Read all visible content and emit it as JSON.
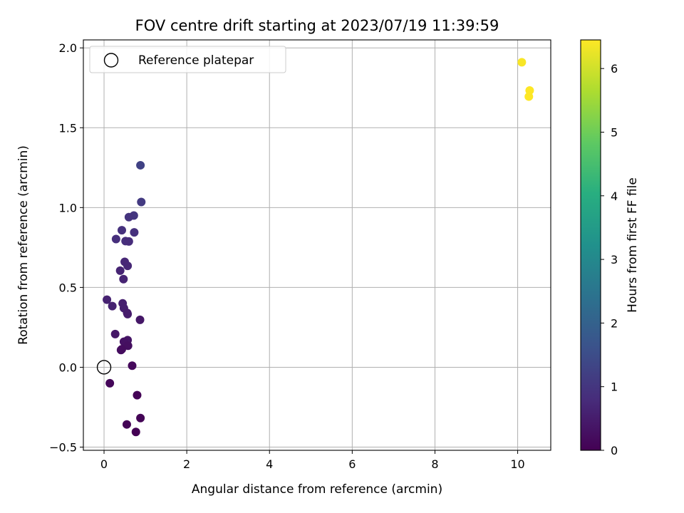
{
  "chart_data": {
    "type": "scatter",
    "title": "FOV centre drift starting at 2023/07/19 11:39:59",
    "xlabel": "Angular distance from reference (arcmin)",
    "ylabel": "Rotation from reference (arcmin)",
    "xlim": [
      -0.5,
      10.8
    ],
    "ylim": [
      -0.52,
      2.05
    ],
    "xticks": [
      0,
      2,
      4,
      6,
      8,
      10
    ],
    "xtick_labels": [
      "0",
      "2",
      "4",
      "6",
      "8",
      "10"
    ],
    "yticks": [
      -0.5,
      0.0,
      0.5,
      1.0,
      1.5,
      2.0
    ],
    "ytick_labels": [
      "−0.5",
      "0.0",
      "0.5",
      "1.0",
      "1.5",
      "2.0"
    ],
    "grid": true,
    "legend": {
      "position": "top-left",
      "entries": [
        {
          "label": "Reference platepar",
          "marker": "open-circle"
        }
      ]
    },
    "reference_point": {
      "x": 0.0,
      "y": 0.0
    },
    "colorbar": {
      "label": "Hours from first FF file",
      "range": [
        0,
        6.45
      ],
      "ticks": [
        0,
        1,
        2,
        3,
        4,
        5,
        6
      ],
      "tick_labels": [
        "0",
        "1",
        "2",
        "3",
        "4",
        "5",
        "6"
      ],
      "colormap": "viridis"
    },
    "points": [
      {
        "x": 0.88,
        "y": 1.265,
        "h": 1.25
      },
      {
        "x": 0.9,
        "y": 1.035,
        "h": 1.1
      },
      {
        "x": 0.72,
        "y": 0.95,
        "h": 1.0
      },
      {
        "x": 0.6,
        "y": 0.94,
        "h": 0.95
      },
      {
        "x": 0.73,
        "y": 0.845,
        "h": 0.9
      },
      {
        "x": 0.43,
        "y": 0.858,
        "h": 0.9
      },
      {
        "x": 0.29,
        "y": 0.803,
        "h": 0.85
      },
      {
        "x": 0.52,
        "y": 0.79,
        "h": 0.85
      },
      {
        "x": 0.6,
        "y": 0.788,
        "h": 0.8
      },
      {
        "x": 0.5,
        "y": 0.66,
        "h": 0.7
      },
      {
        "x": 0.57,
        "y": 0.635,
        "h": 0.7
      },
      {
        "x": 0.39,
        "y": 0.605,
        "h": 0.65
      },
      {
        "x": 0.47,
        "y": 0.552,
        "h": 0.65
      },
      {
        "x": 0.07,
        "y": 0.423,
        "h": 0.6
      },
      {
        "x": 0.2,
        "y": 0.383,
        "h": 0.6
      },
      {
        "x": 0.45,
        "y": 0.4,
        "h": 0.55
      },
      {
        "x": 0.48,
        "y": 0.37,
        "h": 0.55
      },
      {
        "x": 0.56,
        "y": 0.34,
        "h": 0.5
      },
      {
        "x": 0.57,
        "y": 0.333,
        "h": 0.5
      },
      {
        "x": 0.87,
        "y": 0.297,
        "h": 0.4
      },
      {
        "x": 0.27,
        "y": 0.208,
        "h": 0.4
      },
      {
        "x": 0.57,
        "y": 0.17,
        "h": 0.35
      },
      {
        "x": 0.48,
        "y": 0.16,
        "h": 0.3
      },
      {
        "x": 0.58,
        "y": 0.135,
        "h": 0.25
      },
      {
        "x": 0.41,
        "y": 0.108,
        "h": 0.25
      },
      {
        "x": 0.43,
        "y": 0.113,
        "h": 0.2
      },
      {
        "x": 0.68,
        "y": 0.01,
        "h": 0.15
      },
      {
        "x": 0.14,
        "y": -0.1,
        "h": 0.1
      },
      {
        "x": 0.8,
        "y": -0.175,
        "h": 0.05
      },
      {
        "x": 0.88,
        "y": -0.318,
        "h": 0.05
      },
      {
        "x": 0.55,
        "y": -0.358,
        "h": 0.05
      },
      {
        "x": 0.77,
        "y": -0.405,
        "h": 0.0
      },
      {
        "x": 10.1,
        "y": 1.91,
        "h": 6.4
      },
      {
        "x": 10.29,
        "y": 1.733,
        "h": 6.45
      },
      {
        "x": 10.27,
        "y": 1.695,
        "h": 6.45
      }
    ]
  }
}
